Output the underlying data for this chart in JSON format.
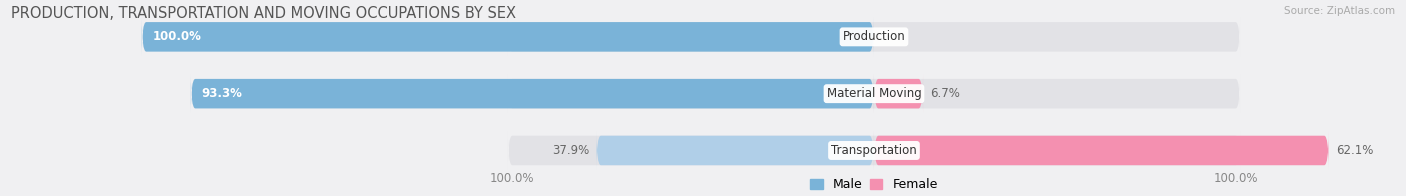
{
  "title": "PRODUCTION, TRANSPORTATION AND MOVING OCCUPATIONS BY SEX",
  "source": "Source: ZipAtlas.com",
  "categories": [
    "Production",
    "Material Moving",
    "Transportation"
  ],
  "male_values": [
    100.0,
    93.3,
    37.9
  ],
  "female_values": [
    0.0,
    6.7,
    62.1
  ],
  "male_color_strong": "#7ab3d8",
  "male_color_light": "#b0cfe8",
  "female_color": "#f490b0",
  "male_label": "Male",
  "female_label": "Female",
  "bar_height": 0.52,
  "background_color": "#f0f0f2",
  "bar_bg_color": "#e2e2e6",
  "axis_label_left": "100.0%",
  "axis_label_right": "100.0%",
  "title_fontsize": 10.5,
  "value_fontsize": 8.5,
  "cat_fontsize": 8.5
}
